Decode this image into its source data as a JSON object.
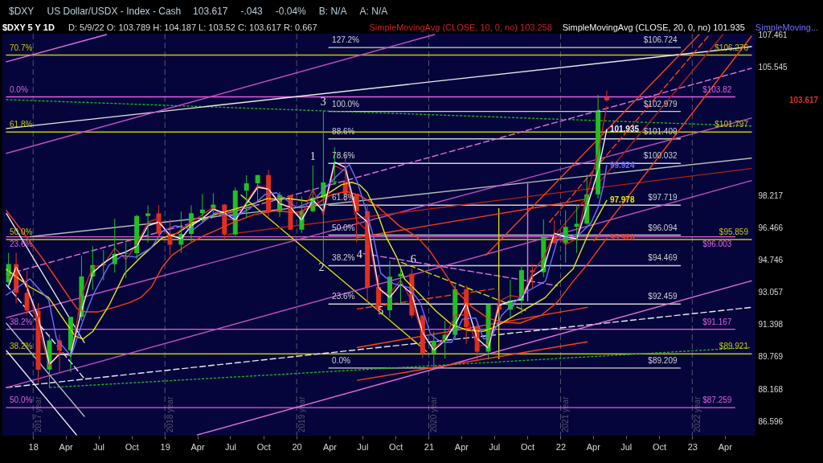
{
  "chart_data": {
    "type": "candlestick",
    "title": "$DXY 5 Y 1D",
    "subtitle": "D: 5/9/22  O: 103.789  H: 104.187  L: 103.52  C: 103.617  R: 0.667",
    "x": [
      "2017-10-25",
      "2017-11-15",
      "2017-12-15",
      "2018-01-15",
      "2018-02-15",
      "2018-03-15",
      "2018-04-15",
      "2018-05-15",
      "2018-06-15",
      "2018-07-15",
      "2018-08-15",
      "2018-09-15",
      "2018-10-15",
      "2018-11-15",
      "2018-12-15",
      "2019-01-15",
      "2019-02-15",
      "2019-03-15",
      "2019-04-15",
      "2019-05-15",
      "2019-06-15",
      "2019-07-15",
      "2019-08-15",
      "2019-09-15",
      "2019-10-15",
      "2019-11-15",
      "2019-12-15",
      "2020-01-15",
      "2020-02-15",
      "2020-03-15",
      "2020-04-15",
      "2020-05-15",
      "2020-06-15",
      "2020-07-15",
      "2020-08-15",
      "2020-09-15",
      "2020-10-15",
      "2020-11-15",
      "2020-12-15",
      "2021-01-15",
      "2021-02-15",
      "2021-03-15",
      "2021-04-15",
      "2021-05-15",
      "2021-06-15",
      "2021-07-15",
      "2021-08-15",
      "2021-09-15",
      "2021-10-15",
      "2021-11-15",
      "2021-12-15",
      "2022-01-15",
      "2022-02-15",
      "2022-03-15",
      "2022-04-15",
      "2022-05-09"
    ],
    "ohlc": [
      [
        93.6,
        95.15,
        93.4,
        94.55
      ],
      [
        94.55,
        95.15,
        92.5,
        93.05
      ],
      [
        93.05,
        94.2,
        91.9,
        92.12
      ],
      [
        92.12,
        92.5,
        88.44,
        89.13
      ],
      [
        89.13,
        90.9,
        88.25,
        90.6
      ],
      [
        90.6,
        90.9,
        89.0,
        90.1
      ],
      [
        90.1,
        91.8,
        89.0,
        91.8
      ],
      [
        91.8,
        95.0,
        91.6,
        93.9
      ],
      [
        93.9,
        95.5,
        93.2,
        94.5
      ],
      [
        94.5,
        95.3,
        93.7,
        94.55
      ],
      [
        94.55,
        96.98,
        94.1,
        95.1
      ],
      [
        95.1,
        95.7,
        93.8,
        95.13
      ],
      [
        95.13,
        97.2,
        94.8,
        97.13
      ],
      [
        97.13,
        97.7,
        95.7,
        97.27
      ],
      [
        97.27,
        97.71,
        95.95,
        96.17
      ],
      [
        96.17,
        96.96,
        95.03,
        95.58
      ],
      [
        95.58,
        97.37,
        95.16,
        96.16
      ],
      [
        96.16,
        97.71,
        95.74,
        97.28
      ],
      [
        97.28,
        98.32,
        96.75,
        97.48
      ],
      [
        97.48,
        98.37,
        97.03,
        97.75
      ],
      [
        97.75,
        97.78,
        95.84,
        96.13
      ],
      [
        96.13,
        98.69,
        95.98,
        98.52
      ],
      [
        98.52,
        99.37,
        97.05,
        98.92
      ],
      [
        98.92,
        99.38,
        97.87,
        99.38
      ],
      [
        99.38,
        99.67,
        97.11,
        97.35
      ],
      [
        97.35,
        98.45,
        97.08,
        98.27
      ],
      [
        98.27,
        98.28,
        96.36,
        96.39
      ],
      [
        96.39,
        98.19,
        96.21,
        97.39
      ],
      [
        97.39,
        99.91,
        97.34,
        98.13
      ],
      [
        98.13,
        102.99,
        94.65,
        98.97
      ],
      [
        98.97,
        100.93,
        98.83,
        99.02
      ],
      [
        99.02,
        100.56,
        97.84,
        98.34
      ],
      [
        98.34,
        98.34,
        95.71,
        97.39
      ],
      [
        97.39,
        97.8,
        92.55,
        93.35
      ],
      [
        93.35,
        93.99,
        92.13,
        92.14
      ],
      [
        92.14,
        94.74,
        91.75,
        93.89
      ],
      [
        93.89,
        94.3,
        92.47,
        94.04
      ],
      [
        94.04,
        94.3,
        91.75,
        91.87
      ],
      [
        91.87,
        91.9,
        89.72,
        89.94
      ],
      [
        89.94,
        91.05,
        89.21,
        90.58
      ],
      [
        90.58,
        91.6,
        89.68,
        90.88
      ],
      [
        90.88,
        93.44,
        90.63,
        93.23
      ],
      [
        93.23,
        93.44,
        90.42,
        91.28
      ],
      [
        91.28,
        91.43,
        89.53,
        90.03
      ],
      [
        90.03,
        92.44,
        89.66,
        92.44
      ],
      [
        92.44,
        93.19,
        91.78,
        92.17
      ],
      [
        92.17,
        93.73,
        91.78,
        92.63
      ],
      [
        92.63,
        94.5,
        91.94,
        94.23
      ],
      [
        94.23,
        94.56,
        93.28,
        94.12
      ],
      [
        94.12,
        96.94,
        93.87,
        95.99
      ],
      [
        95.99,
        96.91,
        95.58,
        95.67
      ],
      [
        95.67,
        97.44,
        94.63,
        96.54
      ],
      [
        96.54,
        97.74,
        95.14,
        96.71
      ],
      [
        96.71,
        99.42,
        96.65,
        98.31
      ],
      [
        98.31,
        103.94,
        98.08,
        102.96
      ],
      [
        103.789,
        104.187,
        103.52,
        103.617
      ]
    ],
    "colors": [
      "#22c022",
      "#e0301e",
      "#e0301e",
      "#e0301e",
      "#22c022",
      "#e0301e",
      "#22c022",
      "#22c022",
      "#22c022",
      "#22c022",
      "#22c022",
      "#22c022",
      "#22c022",
      "#22c022",
      "#e0301e",
      "#e0301e",
      "#22c022",
      "#22c022",
      "#22c022",
      "#22c022",
      "#e0301e",
      "#22c022",
      "#22c022",
      "#22c022",
      "#e0301e",
      "#22c022",
      "#e0301e",
      "#22c022",
      "#22c022",
      "#22c022",
      "#22c022",
      "#e0301e",
      "#e0301e",
      "#e0301e",
      "#e0301e",
      "#22c022",
      "#22c022",
      "#e0301e",
      "#e0301e",
      "#22c022",
      "#22c022",
      "#22c022",
      "#e0301e",
      "#e0301e",
      "#22c022",
      "#e0301e",
      "#22c022",
      "#22c022",
      "#e0301e",
      "#22c022",
      "#e0301e",
      "#22c022",
      "#22c022",
      "#22c022",
      "#22c022",
      "#e0301e"
    ],
    "value_labels": [
      null,
      null,
      null,
      null,
      null,
      null,
      null,
      null,
      null,
      null,
      null,
      null,
      null,
      null,
      null,
      null,
      null,
      null,
      null,
      null,
      null,
      null,
      null,
      null,
      null,
      null,
      null,
      null,
      null,
      null,
      null,
      null,
      null,
      null,
      null,
      null,
      null,
      null,
      null,
      null,
      null,
      null,
      null,
      null,
      null,
      null,
      null,
      null,
      null,
      null,
      null,
      null,
      null,
      null,
      null,
      "103.617"
    ],
    "series": [
      {
        "type": "line",
        "color": "#c8c800",
        "x": [
          "2017-10-19",
          "2023-06-14"
        ],
        "values": [
          106.276,
          106.276
        ],
        "value_labels": [
          null,
          "$106.276"
        ]
      },
      {
        "type": "line",
        "color": "#c8c800",
        "x": [
          "2017-10-19",
          "2023-06-14"
        ],
        "values": [
          101.797,
          101.797
        ],
        "value_labels": [
          null,
          "$101.797"
        ]
      },
      {
        "type": "line",
        "color": "#c8c800",
        "x": [
          "2017-10-19",
          "2023-06-14"
        ],
        "values": [
          95.859,
          95.859
        ],
        "value_labels": [
          null,
          "$95.859"
        ]
      },
      {
        "type": "line",
        "color": "#c8c800",
        "x": [
          "2017-10-19",
          "2023-06-14"
        ],
        "values": [
          89.921,
          89.921
        ],
        "value_labels": [
          null,
          "$89.921"
        ]
      },
      {
        "type": "line",
        "color": "#e060e0",
        "x": [
          "2017-10-19",
          "2023-04-29"
        ],
        "values": [
          103.82,
          103.82
        ],
        "value_labels": [
          null,
          "$103.82"
        ]
      },
      {
        "type": "line",
        "color": "#e060e0",
        "x": [
          "2017-10-19",
          "2023-04-29"
        ],
        "values": [
          96.003,
          96.003
        ],
        "value_labels": [
          null,
          "$96.003"
        ]
      },
      {
        "type": "line",
        "color": "#e060e0",
        "x": [
          "2017-10-19",
          "2023-04-29"
        ],
        "values": [
          91.167,
          91.167
        ],
        "value_labels": [
          null,
          "$91.167"
        ]
      },
      {
        "type": "line",
        "color": "#e060e0",
        "x": [
          "2017-10-19",
          "2023-04-29"
        ],
        "values": [
          87.259,
          87.259
        ],
        "value_labels": [
          null,
          "$87.259"
        ]
      },
      {
        "type": "line",
        "color": "#d0d0d0",
        "x": [
          "2020-03-30",
          "2022-11-29"
        ],
        "values": [
          106.724,
          106.724
        ],
        "value_labels": [
          null,
          "$106.724"
        ]
      },
      {
        "type": "line",
        "color": "#d0d0d0",
        "x": [
          "2020-03-30",
          "2022-11-29"
        ],
        "values": [
          102.979,
          102.979
        ],
        "value_labels": [
          null,
          "$102.979"
        ]
      },
      {
        "type": "line",
        "color": "#d0d0d0",
        "x": [
          "2020-03-30",
          "2022-11-29"
        ],
        "values": [
          101.409,
          101.409
        ],
        "value_labels": [
          null,
          "$101.409"
        ]
      },
      {
        "type": "line",
        "color": "#d0d0d0",
        "x": [
          "2020-03-30",
          "2022-11-29"
        ],
        "values": [
          100.032,
          100.032
        ],
        "value_labels": [
          null,
          "$100.032"
        ]
      },
      {
        "type": "line",
        "color": "#d0d0d0",
        "x": [
          "2020-03-30",
          "2022-11-29"
        ],
        "values": [
          97.719,
          97.719
        ],
        "value_labels": [
          null,
          "$97.719"
        ]
      },
      {
        "type": "line",
        "color": "#d0d0d0",
        "x": [
          "2020-03-30",
          "2022-11-29"
        ],
        "values": [
          96.094,
          96.094
        ],
        "value_labels": [
          null,
          "$96.094"
        ]
      },
      {
        "type": "line",
        "color": "#d0d0d0",
        "x": [
          "2020-03-30",
          "2022-11-29"
        ],
        "values": [
          94.469,
          94.469
        ],
        "value_labels": [
          null,
          "$94.469"
        ]
      },
      {
        "type": "line",
        "color": "#d0d0d0",
        "x": [
          "2020-03-30",
          "2022-11-29"
        ],
        "values": [
          92.459,
          92.459
        ],
        "value_labels": [
          null,
          "$92.459"
        ]
      },
      {
        "type": "line",
        "color": "#d0d0d0",
        "x": [
          "2020-03-30",
          "2022-11-29"
        ],
        "values": [
          89.209,
          89.209
        ],
        "value_labels": [
          null,
          "$89.209"
        ]
      },
      {
        "type": "line",
        "color": "#20b020",
        "line_style": "dotted",
        "x": [
          "2017-10-19",
          "2023-06-14"
        ],
        "values": [
          103.66,
          102.14
        ]
      },
      {
        "type": "line",
        "color": "#20b020",
        "line_style": "dotted",
        "x": [
          "2018-02-16",
          "2023-06-14"
        ],
        "values": [
          88.243,
          90.245
        ]
      },
      {
        "type": "line",
        "color": "#e8e8e8",
        "x": [
          "2017-10-19",
          "2023-06-14"
        ],
        "values": [
          102.0,
          106.78
        ]
      },
      {
        "type": "line",
        "color": "#e8e8e8",
        "line_style": "dashed",
        "x": [
          "2017-10-19",
          "2023-06-14"
        ],
        "values": [
          88.243,
          92.292
        ]
      },
      {
        "type": "line",
        "color": "#e070e0",
        "line_style": "dashed",
        "x": [
          "2017-10-19",
          "2023-06-14"
        ],
        "values": [
          94.006,
          105.494
        ]
      },
      {
        "type": "line",
        "color": "#e070e0",
        "line_style": "dashed",
        "x": [
          "2020-07-04",
          "2021-12-23"
        ],
        "values": [
          95.108,
          93.417
        ]
      },
      {
        "type": "line",
        "color": "#d8d800",
        "line_style": "dashed",
        "x": [
          "2020-10-17",
          "2021-09-26"
        ],
        "values": [
          94.641,
          92.127
        ]
      },
      {
        "type": "line",
        "color": "#d8d800",
        "x": [
          "2019-07-31",
          "2020-12-26"
        ],
        "values": [
          98.275,
          90.043
        ]
      },
      {
        "type": "line",
        "color": "#d8d800",
        "x": [
          "2021-07-14",
          "2021-07-14"
        ],
        "values": [
          97.529,
          89.68
        ]
      },
      {
        "type": "line",
        "color": "#e070e0",
        "x": [
          "2021-10-02",
          "2021-10-02"
        ],
        "values": [
          98.894,
          92.624
        ]
      },
      {
        "type": "line",
        "color": "#b8b8b8",
        "x": [
          "2017-12-23",
          "2023-06-14"
        ],
        "values": [
          96.009,
          100.324
        ]
      },
      {
        "type": "line",
        "color": "#e070e0",
        "x": [
          "2017-10-19",
          "2018-07-23"
        ],
        "values": [
          105.874,
          107.5
        ]
      },
      {
        "type": "line",
        "color": "#c050c0",
        "x": [
          "2017-10-19",
          "2021-01-17"
        ],
        "values": [
          100.595,
          107.5
        ]
      },
      {
        "type": "line",
        "color": "#c050c0",
        "x": [
          "2017-10-19",
          "2023-06-14"
        ],
        "values": [
          91.756,
          102.6
        ]
      },
      {
        "type": "line",
        "color": "#c050c0",
        "x": [
          "2017-10-19",
          "2023-06-14"
        ],
        "values": [
          88.243,
          99.071
        ]
      },
      {
        "type": "line",
        "color": "#e070e0",
        "x": [
          "2019-04-01",
          "2023-06-14"
        ],
        "values": [
          85.938,
          93.669
        ]
      },
      {
        "type": "line",
        "color": "#e8e8e8",
        "x": [
          "2017-10-19",
          "2018-05-23"
        ],
        "values": [
          97.266,
          90.488
        ]
      },
      {
        "type": "line",
        "color": "#e8e8e8",
        "line_style": "dashed",
        "x": [
          "2017-10-19",
          "2018-05-25"
        ],
        "values": [
          93.459,
          88.64
        ]
      },
      {
        "type": "line",
        "color": "#b8b8b8",
        "x": [
          "2017-10-19",
          "2018-05-23"
        ],
        "values": [
          91.468,
          86.829
        ]
      },
      {
        "type": "line",
        "color": "#e8e8e8",
        "x": [
          "2017-10-19",
          "2018-05-01"
        ],
        "values": [
          90.083,
          85.938
        ]
      },
      {
        "type": "line",
        "color": "#b02010",
        "x": [
          "2019-06-24",
          "2023-06-14"
        ],
        "values": [
          96.138,
          99.741
        ]
      },
      {
        "type": "line",
        "color": "#ff4010",
        "x": [
          "2020-06-17",
          "2022-03-14"
        ],
        "values": [
          95.965,
          98.054
        ]
      },
      {
        "type": "line",
        "color": "#ff4010",
        "x": [
          "2020-06-17",
          "2022-03-16"
        ],
        "values": [
          88.6,
          90.529
        ]
      },
      {
        "type": "line",
        "color": "#ff4010",
        "x": [
          "2020-06-17",
          "2022-03-16"
        ],
        "values": [
          90.245,
          92.292
        ]
      },
      {
        "type": "line",
        "color": "#ff4010",
        "line_style": "dashed",
        "x": [
          "2020-06-17",
          "2021-06-30"
        ],
        "values": [
          92.209,
          93.25
        ]
      },
      {
        "type": "line",
        "color": "#ff4010",
        "x": [
          "2021-06-08",
          "2023-01-20"
        ],
        "values": [
          95.023,
          107.5
        ]
      },
      {
        "type": "line",
        "color": "#ff4010",
        "line_style": "dashed",
        "x": [
          "2021-12-01",
          "2023-02-18"
        ],
        "values": [
          96.787,
          107.5
        ]
      },
      {
        "type": "line",
        "color": "#b02010",
        "x": [
          "2021-12-23",
          "2023-03-27"
        ],
        "values": [
          96.225,
          107.5
        ]
      },
      {
        "type": "line",
        "color": "#ff4010",
        "x": [
          "2022-04-04",
          "2023-06-14"
        ],
        "values": [
          95.793,
          107.403
        ]
      },
      {
        "type": "line",
        "color": "#ff3c10",
        "x": [
          "2017-10-19",
          "2017-12-06",
          "2018-01-29",
          "2018-03-07",
          "2018-04-11",
          "2018-05-03",
          "2018-05-25",
          "2018-07-01",
          "2018-08-14",
          "2018-09-27",
          "2018-10-26",
          "2018-11-25",
          "2018-12-24",
          "2019-01-21",
          "2019-03-06",
          "2019-04-19",
          "2019-05-20",
          "2019-07-09",
          "2019-09-06",
          "2019-11-06",
          "2019-12-31",
          "2020-02-13",
          "2020-04-03",
          "2020-05-17",
          "2020-06-23",
          "2020-08-13",
          "2020-10-11",
          "2020-11-24",
          "2020-12-09",
          "2021-01-06",
          "2021-02-04",
          "2021-03-20",
          "2021-05-02",
          "2021-06-15",
          "2021-07-29",
          "2021-09-11",
          "2021-11-09",
          "2021-12-23",
          "2022-02-05",
          "2022-03-20",
          "2022-05-09"
        ],
        "values": [
          97.42,
          96.2,
          94.79,
          93.77,
          92.8,
          92.22,
          92.06,
          92.06,
          92.29,
          92.55,
          92.8,
          93.35,
          94.37,
          95.03,
          95.6,
          96.07,
          96.33,
          96.77,
          97.21,
          97.42,
          97.3,
          97.64,
          98.26,
          98.48,
          98.26,
          97.64,
          96.6,
          96.07,
          95.8,
          95.2,
          94.37,
          93.1,
          92.29,
          91.72,
          91.52,
          91.48,
          91.89,
          92.55,
          93.65,
          94.62,
          95.928
        ],
        "value_labels": [
          null,
          null,
          null,
          null,
          null,
          null,
          null,
          null,
          null,
          null,
          null,
          null,
          null,
          null,
          null,
          null,
          null,
          null,
          null,
          null,
          null,
          null,
          null,
          null,
          null,
          null,
          null,
          null,
          null,
          null,
          null,
          null,
          null,
          null,
          null,
          null,
          null,
          null,
          null,
          null,
          "95.928"
        ]
      },
      {
        "type": "line",
        "color": "#e8e800",
        "x": [
          "2017-10-19",
          "2017-12-23",
          "2018-02-13",
          "2018-03-29",
          "2018-04-27",
          "2018-05-19",
          "2018-06-16",
          "2018-07-30",
          "2018-09-12",
          "2018-10-26",
          "2018-12-24",
          "2019-02-05",
          "2019-03-20",
          "2019-05-20",
          "2019-07-15",
          "2019-09-06",
          "2019-10-11",
          "2019-11-06",
          "2019-12-09",
          "2020-01-28",
          "2020-03-21",
          "2020-05-04",
          "2020-06-01",
          "2020-06-23",
          "2020-07-15",
          "2020-08-13",
          "2020-09-03",
          "2020-10-04",
          "2020-10-26",
          "2020-12-09",
          "2021-01-21",
          "2021-03-06",
          "2021-04-19",
          "2021-06-02",
          "2021-07-07",
          "2021-08-13",
          "2021-09-26",
          "2021-11-20",
          "2021-12-23",
          "2022-02-05",
          "2022-03-20",
          "2022-05-09"
        ],
        "values": [
          94.27,
          93.35,
          92.8,
          91.6,
          90.83,
          90.67,
          91.07,
          92.39,
          94.07,
          94.92,
          95.94,
          96.2,
          96.77,
          97.21,
          97.51,
          97.82,
          98.08,
          98.04,
          98.08,
          97.95,
          98.26,
          98.84,
          98.98,
          98.84,
          98.4,
          97.21,
          96.07,
          94.92,
          93.77,
          92.93,
          92.1,
          91.4,
          91.11,
          91.07,
          91.31,
          91.72,
          92.2,
          92.8,
          93.5,
          94.3,
          96.2,
          97.978
        ],
        "value_labels": [
          null,
          null,
          null,
          null,
          null,
          null,
          null,
          null,
          null,
          null,
          null,
          null,
          null,
          null,
          null,
          null,
          null,
          null,
          null,
          null,
          null,
          null,
          null,
          null,
          null,
          null,
          null,
          null,
          null,
          null,
          null,
          null,
          null,
          null,
          null,
          null,
          null,
          null,
          null,
          null,
          null,
          "97.978"
        ]
      },
      {
        "type": "line",
        "name": "SimpleMovingAvg (CLOSE, 10, 0, no) 103.258",
        "color": "#d02020",
        "values": [
          93.8,
          94.2,
          93.5,
          91.3,
          89.3,
          90.0,
          89.8,
          92.9,
          94.4,
          94.5,
          95.4,
          94.8,
          95.6,
          96.8,
          97.0,
          95.9,
          96.4,
          96.8,
          97.2,
          97.6,
          97.0,
          96.9,
          97.9,
          98.8,
          98.6,
          97.9,
          97.5,
          97.1,
          98.6,
          97.2,
          99.9,
          99.6,
          96.9,
          96.3,
          93.1,
          93.0,
          93.7,
          92.6,
          90.9,
          90.2,
          90.7,
          91.9,
          91.9,
          90.3,
          90.4,
          92.6,
          92.9,
          92.8,
          94.1,
          94.9,
          96.2,
          95.6,
          95.9,
          98.3,
          100.6,
          103.258
        ]
      },
      {
        "type": "line",
        "name": "SimpleMovingAvg (CLOSE, 20, 0, no) 101.935",
        "color": "#f2f2f2",
        "values": [
          93.4,
          94.4,
          93.3,
          91.8,
          89.4,
          89.9,
          89.9,
          92.1,
          94.1,
          94.6,
          95.0,
          95.2,
          95.5,
          96.6,
          96.8,
          96.1,
          95.9,
          96.6,
          97.0,
          97.5,
          97.3,
          96.9,
          97.8,
          98.7,
          98.6,
          97.8,
          97.6,
          96.9,
          98.0,
          97.4,
          100.1,
          99.8,
          97.3,
          96.8,
          93.3,
          92.8,
          93.5,
          93.0,
          91.0,
          90.1,
          90.6,
          91.4,
          92.5,
          90.7,
          90.2,
          92.4,
          92.6,
          92.7,
          93.9,
          94.3,
          96.2,
          96.0,
          95.9,
          97.6,
          99.6,
          101.935
        ],
        "value_labels": [
          null,
          null,
          null,
          null,
          null,
          null,
          null,
          null,
          null,
          null,
          null,
          null,
          null,
          null,
          null,
          null,
          null,
          null,
          null,
          null,
          null,
          null,
          null,
          null,
          null,
          null,
          null,
          null,
          null,
          null,
          null,
          null,
          null,
          null,
          null,
          null,
          null,
          null,
          null,
          null,
          null,
          null,
          null,
          null,
          null,
          null,
          null,
          null,
          null,
          null,
          null,
          null,
          null,
          null,
          null,
          "101.935"
        ]
      },
      {
        "type": "line",
        "name": "SimpleMoving...",
        "color": "#6e6eff",
        "x": [
          "2017-10-19",
          "2017-12-23",
          "2018-02-13",
          "2018-03-07",
          "2018-04-16",
          "2018-05-19",
          "2018-06-16",
          "2018-07-30",
          "2018-09-05",
          "2018-10-13",
          "2018-11-25",
          "2018-12-24",
          "2019-01-30",
          "2019-03-21",
          "2019-05-20",
          "2019-07-15",
          "2019-08-22",
          "2019-10-05",
          "2019-11-06",
          "2019-12-31",
          "2020-02-13",
          "2020-03-21",
          "2020-04-25",
          "2020-05-26",
          "2020-06-17",
          "2020-07-09",
          "2020-07-31",
          "2020-08-21",
          "2020-09-25",
          "2020-11-08",
          "2020-12-09",
          "2021-01-06",
          "2021-02-04",
          "2021-03-06",
          "2021-04-04",
          "2021-05-11",
          "2021-06-02",
          "2021-06-24",
          "2021-07-22",
          "2021-08-29",
          "2021-10-03",
          "2021-11-20",
          "2021-12-23",
          "2022-02-26",
          "2022-03-27",
          "2022-04-16",
          "2022-04-29",
          "2022-05-09"
        ],
        "values": [
          92.93,
          93.77,
          92.68,
          90.67,
          89.81,
          91.6,
          92.93,
          94.49,
          95.0,
          94.92,
          95.43,
          96.3,
          96.6,
          96.4,
          97.3,
          97.1,
          97.5,
          98.3,
          98.4,
          97.6,
          97.9,
          98.7,
          99.4,
          99.96,
          99.0,
          97.6,
          96.07,
          94.07,
          93.52,
          93.31,
          92.51,
          90.91,
          90.51,
          90.51,
          91.68,
          91.75,
          90.67,
          90.79,
          91.88,
          92.6,
          93.14,
          93.65,
          95.81,
          96.2,
          96.77,
          97.64,
          98.71,
          99.924
        ],
        "value_labels": [
          null,
          null,
          null,
          null,
          null,
          null,
          null,
          null,
          null,
          null,
          null,
          null,
          null,
          null,
          null,
          null,
          null,
          null,
          null,
          null,
          null,
          null,
          null,
          null,
          null,
          null,
          null,
          null,
          null,
          null,
          null,
          null,
          null,
          null,
          null,
          null,
          null,
          null,
          null,
          null,
          null,
          null,
          null,
          null,
          null,
          null,
          null,
          "99.924"
        ]
      }
    ],
    "ref_lines": [
      {
        "axis": "x",
        "value": "2018-01-01",
        "label": "2017 year",
        "color": "#55556a",
        "line_style": "dashed"
      },
      {
        "axis": "x",
        "value": "2019-01-01",
        "label": "2018 year",
        "color": "#55556a",
        "line_style": "dashed"
      },
      {
        "axis": "x",
        "value": "2020-01-01",
        "label": "2019 year",
        "color": "#55556a",
        "line_style": "dashed"
      },
      {
        "axis": "x",
        "value": "2021-01-01",
        "label": "2020 year",
        "color": "#55556a",
        "line_style": "dashed"
      },
      {
        "axis": "x",
        "value": "2022-01-01",
        "label": "2021 year",
        "color": "#55556a",
        "line_style": "dashed"
      },
      {
        "axis": "x",
        "value": "2023-01-01",
        "label": "2022 year",
        "color": "#55556a",
        "line_style": "dashed"
      }
    ],
    "annotations": [
      "$DXY",
      "US Dollar/USDX - Index - Cash",
      "103.617",
      "-.043",
      "-0.04%",
      "B: N/A",
      "A: N/A",
      {
        "text": "70.7%",
        "x": "2017-10-19",
        "y": 106.276
      },
      {
        "text": "61.8%",
        "x": "2017-10-19",
        "y": 101.797
      },
      {
        "text": "50.0%",
        "x": "2017-10-19",
        "y": 95.859
      },
      {
        "text": "38.2%",
        "x": "2017-10-19",
        "y": 89.921
      },
      {
        "text": "0.0%",
        "x": "2017-10-19",
        "y": 103.82
      },
      {
        "text": "23.6%",
        "x": "2017-10-19",
        "y": 96.003
      },
      {
        "text": "38.2%",
        "x": "2017-10-19",
        "y": 91.167
      },
      {
        "text": "50.0%",
        "x": "2017-10-19",
        "y": 87.259
      },
      {
        "text": "127.2%",
        "x": "2020-03-30",
        "y": 106.724
      },
      {
        "text": "100.0%",
        "x": "2020-03-30",
        "y": 102.979
      },
      {
        "text": "88.6%",
        "x": "2020-03-30",
        "y": 101.409
      },
      {
        "text": "78.6%",
        "x": "2020-03-30",
        "y": 100.032
      },
      {
        "text": "61.8%",
        "x": "2020-03-30",
        "y": 97.719
      },
      {
        "text": "50.0%",
        "x": "2020-03-30",
        "y": 96.094
      },
      {
        "text": "38.2%",
        "x": "2020-03-30",
        "y": 94.469
      },
      {
        "text": "23.6%",
        "x": "2020-03-30",
        "y": 92.459
      },
      {
        "text": "0.0%",
        "x": "2020-03-30",
        "y": 89.209
      },
      {
        "text": "1",
        "x": "2020-02-15",
        "y": 99.91
      },
      {
        "text": "2",
        "x": "2020-03-10",
        "y": 94.36
      },
      {
        "text": "3",
        "x": "2020-03-15",
        "y": 102.99
      },
      {
        "text": "4",
        "x": "2020-06-23",
        "y": 95.04
      },
      {
        "text": "5",
        "x": "2020-08-21",
        "y": 92.1
      },
      {
        "text": "6",
        "x": "2020-11-19",
        "y": 94.79
      }
    ],
    "xlim": [
      "2017-10-19",
      "2023-06-14"
    ],
    "xticks": [
      {
        "value": "2018-01-01",
        "label": "18"
      },
      {
        "value": "2018-04-01",
        "label": "Apr"
      },
      {
        "value": "2018-07-01",
        "label": "Jul"
      },
      {
        "value": "2018-10-01",
        "label": "Oct"
      },
      {
        "value": "2019-01-01",
        "label": "19"
      },
      {
        "value": "2019-04-01",
        "label": "Apr"
      },
      {
        "value": "2019-07-01",
        "label": "Jul"
      },
      {
        "value": "2019-10-01",
        "label": "Oct"
      },
      {
        "value": "2020-01-01",
        "label": "20"
      },
      {
        "value": "2020-04-01",
        "label": "Apr"
      },
      {
        "value": "2020-07-01",
        "label": "Jul"
      },
      {
        "value": "2020-10-01",
        "label": "Oct"
      },
      {
        "value": "2021-01-01",
        "label": "21"
      },
      {
        "value": "2021-04-01",
        "label": "Apr"
      },
      {
        "value": "2021-07-01",
        "label": "Jul"
      },
      {
        "value": "2021-10-01",
        "label": "Oct"
      },
      {
        "value": "2022-01-01",
        "label": "22"
      },
      {
        "value": "2022-04-01",
        "label": "Apr"
      },
      {
        "value": "2022-07-01",
        "label": "Jul"
      },
      {
        "value": "2022-10-01",
        "label": "Oct"
      },
      {
        "value": "2023-01-01",
        "label": "23"
      },
      {
        "value": "2023-04-01",
        "label": "Apr"
      }
    ],
    "ylim": [
      85.9,
      107.55
    ],
    "yticks": [
      107.461,
      105.545,
      98.217,
      96.466,
      94.746,
      93.057,
      91.398,
      89.769,
      88.168,
      86.596
    ],
    "log": true,
    "legend": "top right"
  }
}
